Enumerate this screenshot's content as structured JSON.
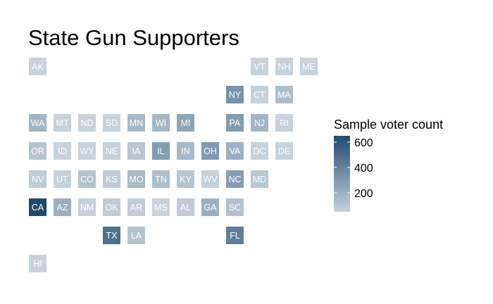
{
  "chart_data": {
    "type": "heatmap",
    "title": "State Gun Supporters",
    "legend": {
      "title": "Sample voter count",
      "placement": "right",
      "ticks": [
        200,
        400,
        600
      ],
      "range": [
        50,
        650
      ],
      "color_low": "#c7d2dc",
      "color_high": "#1e4a6e"
    },
    "cells": [
      {
        "state": "AK",
        "col": 0,
        "row": 0,
        "value": 20
      },
      {
        "state": "VT",
        "col": 9,
        "row": 0,
        "value": 30
      },
      {
        "state": "NH",
        "col": 10,
        "row": 0,
        "value": 40
      },
      {
        "state": "ME",
        "col": 11,
        "row": 0,
        "value": 30
      },
      {
        "state": "NY",
        "col": 8,
        "row": 1,
        "value": 330
      },
      {
        "state": "CT",
        "col": 9,
        "row": 1,
        "value": 60
      },
      {
        "state": "MA",
        "col": 10,
        "row": 1,
        "value": 140
      },
      {
        "state": "WA",
        "col": 0,
        "row": 2,
        "value": 180
      },
      {
        "state": "MT",
        "col": 1,
        "row": 2,
        "value": 60
      },
      {
        "state": "ND",
        "col": 2,
        "row": 2,
        "value": 30
      },
      {
        "state": "SD",
        "col": 3,
        "row": 2,
        "value": 40
      },
      {
        "state": "MN",
        "col": 4,
        "row": 2,
        "value": 160
      },
      {
        "state": "WI",
        "col": 5,
        "row": 2,
        "value": 170
      },
      {
        "state": "MI",
        "col": 6,
        "row": 2,
        "value": 250
      },
      {
        "state": "PA",
        "col": 8,
        "row": 2,
        "value": 290
      },
      {
        "state": "NJ",
        "col": 9,
        "row": 2,
        "value": 180
      },
      {
        "state": "RI",
        "col": 10,
        "row": 2,
        "value": 30
      },
      {
        "state": "OR",
        "col": 0,
        "row": 3,
        "value": 110
      },
      {
        "state": "ID",
        "col": 1,
        "row": 3,
        "value": 50
      },
      {
        "state": "WY",
        "col": 2,
        "row": 3,
        "value": 30
      },
      {
        "state": "NE",
        "col": 3,
        "row": 3,
        "value": 60
      },
      {
        "state": "IA",
        "col": 4,
        "row": 3,
        "value": 100
      },
      {
        "state": "IL",
        "col": 5,
        "row": 3,
        "value": 290
      },
      {
        "state": "IN",
        "col": 6,
        "row": 3,
        "value": 160
      },
      {
        "state": "OH",
        "col": 7,
        "row": 3,
        "value": 300
      },
      {
        "state": "VA",
        "col": 8,
        "row": 3,
        "value": 200
      },
      {
        "state": "DC",
        "col": 9,
        "row": 3,
        "value": 20
      },
      {
        "state": "DE",
        "col": 10,
        "row": 3,
        "value": 40
      },
      {
        "state": "NV",
        "col": 0,
        "row": 4,
        "value": 80
      },
      {
        "state": "UT",
        "col": 1,
        "row": 4,
        "value": 60
      },
      {
        "state": "CO",
        "col": 2,
        "row": 4,
        "value": 120
      },
      {
        "state": "KS",
        "col": 3,
        "row": 4,
        "value": 80
      },
      {
        "state": "MO",
        "col": 4,
        "row": 4,
        "value": 160
      },
      {
        "state": "TN",
        "col": 5,
        "row": 4,
        "value": 140
      },
      {
        "state": "KY",
        "col": 6,
        "row": 4,
        "value": 110
      },
      {
        "state": "WV",
        "col": 7,
        "row": 4,
        "value": 60
      },
      {
        "state": "NC",
        "col": 8,
        "row": 4,
        "value": 280
      },
      {
        "state": "MD",
        "col": 9,
        "row": 4,
        "value": 100
      },
      {
        "state": "CA",
        "col": 0,
        "row": 5,
        "value": 650
      },
      {
        "state": "AZ",
        "col": 1,
        "row": 5,
        "value": 210
      },
      {
        "state": "NM",
        "col": 2,
        "row": 5,
        "value": 60
      },
      {
        "state": "OK",
        "col": 3,
        "row": 5,
        "value": 80
      },
      {
        "state": "AR",
        "col": 4,
        "row": 5,
        "value": 70
      },
      {
        "state": "MS",
        "col": 5,
        "row": 5,
        "value": 50
      },
      {
        "state": "AL",
        "col": 6,
        "row": 5,
        "value": 80
      },
      {
        "state": "GA",
        "col": 7,
        "row": 5,
        "value": 200
      },
      {
        "state": "SC",
        "col": 8,
        "row": 5,
        "value": 120
      },
      {
        "state": "TX",
        "col": 3,
        "row": 6,
        "value": 480
      },
      {
        "state": "LA",
        "col": 4,
        "row": 6,
        "value": 110
      },
      {
        "state": "FL",
        "col": 8,
        "row": 6,
        "value": 420
      },
      {
        "state": "HI",
        "col": 0,
        "row": 7,
        "value": 20
      }
    ]
  }
}
